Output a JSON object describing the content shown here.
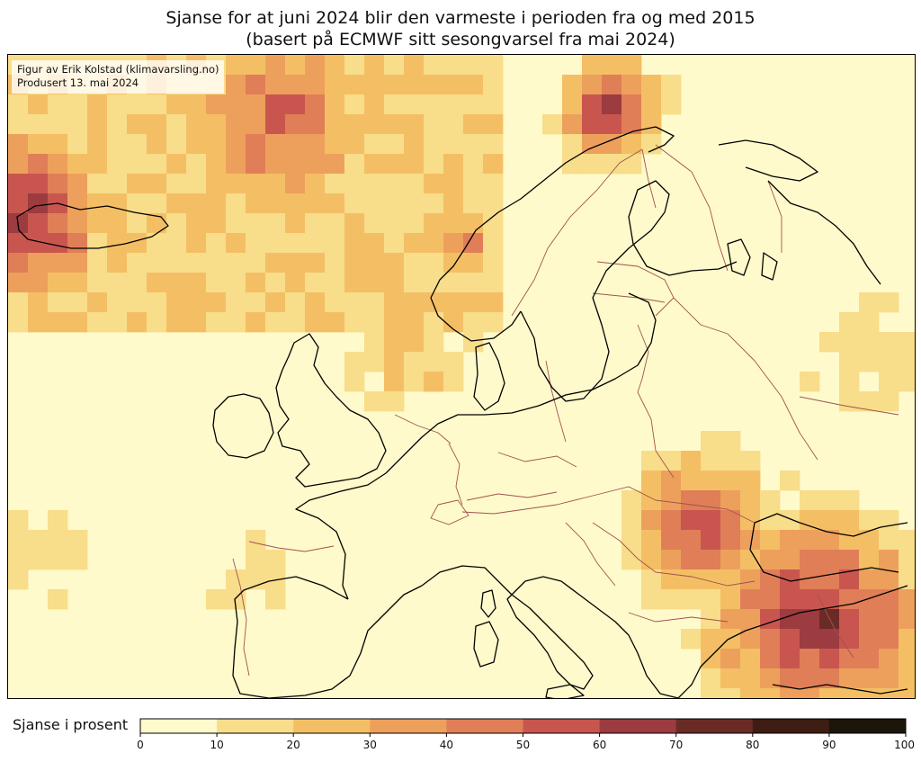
{
  "title": {
    "line1": "Sjanse for at juni 2024 blir den varmeste i perioden fra og med 2015",
    "line2": "(basert på ECMWF sitt sesongvarsel fra mai 2024)"
  },
  "credit": {
    "author": "Figur av Erik Kolstad (klimavarsling.no)",
    "produced": "Produsert 13. mai 2024"
  },
  "colorbar": {
    "label": "Sjanse i prosent",
    "ticks": [
      0,
      10,
      20,
      30,
      40,
      50,
      60,
      70,
      80,
      90,
      100
    ],
    "tick_labels": [
      "0",
      "10",
      "20",
      "30",
      "40",
      "50",
      "60",
      "70",
      "80",
      "90",
      "100"
    ],
    "colors": [
      "#FFFACB",
      "#F8DD8A",
      "#F4BF64",
      "#EDA05C",
      "#E07E58",
      "#C8564F",
      "#9C3B40",
      "#6A2B27",
      "#3E1E12",
      "#1C150A"
    ]
  },
  "map": {
    "region": "Europe",
    "colors": {
      "ocean_land_default": "#FFFACB",
      "coastline": "#000000",
      "borders": "#A0524E"
    },
    "hotspots": [
      {
        "area": "Iceland west",
        "chance_pct": 75
      },
      {
        "area": "Norwegian Sea",
        "chance_pct": 55
      },
      {
        "area": "Finnmark",
        "chance_pct": 70
      },
      {
        "area": "Western Norway",
        "chance_pct": 45
      },
      {
        "area": "Balkans",
        "chance_pct": 60
      },
      {
        "area": "Aegean Sea",
        "chance_pct": 70
      },
      {
        "area": "Eastern Mediterranean",
        "chance_pct": 60
      }
    ]
  }
}
